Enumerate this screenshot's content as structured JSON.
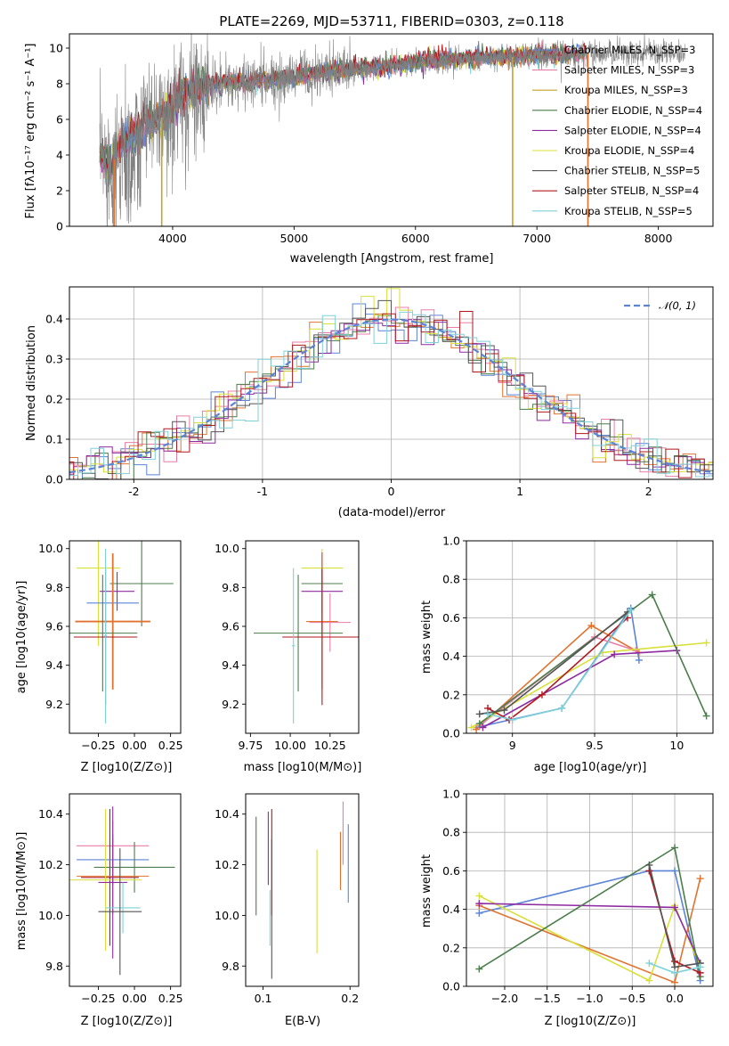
{
  "colors": {
    "chabrier_miles": "#5b84d8",
    "salpeter_miles": "#e87ea8",
    "kroupa_miles": "#c9a227",
    "chabrier_elodie": "#4c7d4c",
    "salpeter_elodie": "#8e2ba1",
    "kroupa_elodie": "#d8e03a",
    "chabrier_stelib": "#555555",
    "salpeter_stelib": "#b0191e",
    "kroupa_stelib": "#7fd1d8",
    "orange": "#e0732f",
    "gaussian": "#5b84d8",
    "spectrum": "#808080",
    "grid": "#b0b0b0"
  },
  "chart_data": [
    {
      "id": "spectrum",
      "type": "line",
      "title": "PLATE=2269, MJD=53711, FIBERID=0303, z=0.118",
      "xlabel": "wavelength [Angstrom, rest frame]",
      "ylabel": "Flux [fλ10⁻¹⁷ erg cm⁻² s⁻¹ A⁻¹]",
      "xlim": [
        3150,
        8450
      ],
      "ylim": [
        0,
        10.8
      ],
      "xticks": [
        4000,
        5000,
        6000,
        7000,
        8000
      ],
      "yticks": [
        0,
        2,
        4,
        6,
        8,
        10
      ],
      "legend_position": "top-right",
      "legend": [
        {
          "label": "Chabrier MILES, N_SSP=3",
          "color": "chabrier_miles"
        },
        {
          "label": "Salpeter MILES, N_SSP=3",
          "color": "salpeter_miles"
        },
        {
          "label": "Kroupa MILES, N_SSP=3",
          "color": "kroupa_miles"
        },
        {
          "label": "Chabrier ELODIE, N_SSP=4",
          "color": "chabrier_elodie"
        },
        {
          "label": "Salpeter ELODIE, N_SSP=4",
          "color": "salpeter_elodie"
        },
        {
          "label": "Kroupa ELODIE, N_SSP=4",
          "color": "kroupa_elodie"
        },
        {
          "label": "Chabrier STELIB, N_SSP=5",
          "color": "chabrier_stelib"
        },
        {
          "label": "Salpeter STELIB, N_SSP=4",
          "color": "salpeter_stelib"
        },
        {
          "label": "Kroupa STELIB, N_SSP=5",
          "color": "kroupa_stelib"
        }
      ],
      "continuum": {
        "x": [
          3400,
          3500,
          3600,
          3700,
          3800,
          3900,
          4000,
          4100,
          4200,
          4400,
          4600,
          4800,
          5000,
          5200,
          5500,
          5800,
          6000,
          6200,
          6500,
          6800,
          7000,
          7200,
          7400
        ],
        "y": [
          3.8,
          3.5,
          4.8,
          5.2,
          5.8,
          6.0,
          6.8,
          7.5,
          7.8,
          8.0,
          8.1,
          8.2,
          8.3,
          8.6,
          8.8,
          9.0,
          9.2,
          9.3,
          9.4,
          9.5,
          9.6,
          9.6,
          9.7
        ]
      }
    },
    {
      "id": "residuals",
      "type": "histogram",
      "xlabel": "(data-model)/error",
      "ylabel": "Normed distribution",
      "xlim": [
        -2.5,
        2.5
      ],
      "ylim": [
        0,
        0.48
      ],
      "xticks": [
        -2,
        -1,
        0,
        1,
        2
      ],
      "yticks": [
        0.0,
        0.1,
        0.2,
        0.3,
        0.4
      ],
      "legend": [
        {
          "label": "𝒩(0, 1)",
          "color": "gaussian",
          "style": "dashed"
        }
      ],
      "legend_position": "top-right"
    },
    {
      "id": "age_vs_Z",
      "type": "errorbar",
      "xlabel": "Z [log10(Z/Z⊙)]",
      "ylabel": "age  [log10(age/yr)]",
      "xlim": [
        -0.45,
        0.32
      ],
      "ylim": [
        9.05,
        10.04
      ],
      "xticks": [
        -0.25,
        0.0,
        0.25
      ],
      "xticklabels": [
        "−0.25",
        "0.00",
        "0.25"
      ],
      "yticks": [
        9.2,
        9.4,
        9.6,
        9.8,
        10.0
      ]
    },
    {
      "id": "age_vs_mass",
      "type": "errorbar",
      "xlabel": "mass [log10(M/M⊙)]",
      "ylabel": "",
      "xlim": [
        9.72,
        10.43
      ],
      "ylim": [
        9.05,
        10.04
      ],
      "xticks": [
        9.75,
        10.0,
        10.25
      ],
      "xticklabels": [
        "9.75",
        "10.00",
        "10.25"
      ],
      "yticks": [
        9.2,
        9.4,
        9.6,
        9.8,
        10.0
      ]
    },
    {
      "id": "weight_vs_age",
      "type": "line",
      "xlabel": "age  [log10(age/yr)]",
      "ylabel": "mass weight",
      "xlim": [
        8.72,
        10.22
      ],
      "ylim": [
        0,
        1.0
      ],
      "xticks": [
        9.0,
        9.5,
        10.0
      ],
      "yticks": [
        0.0,
        0.2,
        0.4,
        0.6,
        0.8,
        1.0
      ],
      "series": [
        {
          "color": "chabrier_miles",
          "x": [
            8.78,
            9.3,
            9.72,
            9.77
          ],
          "y": [
            0.03,
            0.13,
            0.65,
            0.38
          ]
        },
        {
          "color": "orange",
          "x": [
            8.78,
            9.48,
            9.77
          ],
          "y": [
            0.02,
            0.56,
            0.42
          ]
        },
        {
          "color": "salpeter_miles",
          "x": [
            8.8,
            9.5,
            9.75
          ],
          "y": [
            0.04,
            0.5,
            0.43
          ]
        },
        {
          "color": "kroupa_elodie",
          "x": [
            8.75,
            9.55,
            10.18
          ],
          "y": [
            0.03,
            0.42,
            0.47
          ]
        },
        {
          "color": "salpeter_elodie",
          "x": [
            8.82,
            9.62,
            10.0
          ],
          "y": [
            0.03,
            0.41,
            0.43
          ]
        },
        {
          "color": "chabrier_elodie",
          "x": [
            8.8,
            9.85,
            10.18
          ],
          "y": [
            0.05,
            0.72,
            0.09
          ]
        },
        {
          "color": "salpeter_stelib",
          "x": [
            8.85,
            8.98,
            9.18,
            9.7
          ],
          "y": [
            0.13,
            0.07,
            0.2,
            0.6
          ]
        },
        {
          "color": "chabrier_stelib",
          "x": [
            8.8,
            8.95,
            9.7
          ],
          "y": [
            0.1,
            0.12,
            0.63
          ]
        },
        {
          "color": "kroupa_stelib",
          "x": [
            8.85,
            9.0,
            9.3,
            9.72
          ],
          "y": [
            0.1,
            0.07,
            0.13,
            0.64
          ]
        }
      ]
    },
    {
      "id": "mass_vs_Z",
      "type": "errorbar",
      "xlabel": "Z [log10(Z/Z⊙)]",
      "ylabel": "mass [log10(M/M⊙)]",
      "xlim": [
        -0.45,
        0.32
      ],
      "ylim": [
        9.72,
        10.48
      ],
      "xticks": [
        -0.25,
        0.0,
        0.25
      ],
      "xticklabels": [
        "−0.25",
        "0.00",
        "0.25"
      ],
      "yticks": [
        9.8,
        10.0,
        10.2,
        10.4
      ]
    },
    {
      "id": "mass_vs_ebv",
      "type": "errorbar",
      "xlabel": "E(B-V)",
      "ylabel": "",
      "xlim": [
        0.08,
        0.21
      ],
      "ylim": [
        9.72,
        10.48
      ],
      "xticks": [
        0.1,
        0.2
      ],
      "xticklabels": [
        "0.1",
        "0.2"
      ],
      "yticks": [
        9.8,
        10.0,
        10.2,
        10.4
      ]
    },
    {
      "id": "weight_vs_Z",
      "type": "line",
      "xlabel": "Z [log10(Z/Z⊙)]",
      "ylabel": "mass weight",
      "xlim": [
        -2.45,
        0.45
      ],
      "ylim": [
        0,
        1.0
      ],
      "xticks": [
        -2.0,
        -1.5,
        -1.0,
        -0.5,
        0.0
      ],
      "xticklabels": [
        "−2.0",
        "−1.5",
        "−1.0",
        "−0.5",
        "0.0"
      ],
      "yticks": [
        0.0,
        0.2,
        0.4,
        0.6,
        0.8,
        1.0
      ],
      "series": [
        {
          "color": "chabrier_miles",
          "x": [
            -2.3,
            -0.3,
            0.0,
            0.3
          ],
          "y": [
            0.38,
            0.6,
            0.6,
            0.03
          ]
        },
        {
          "color": "orange",
          "x": [
            -2.3,
            0.0,
            0.3
          ],
          "y": [
            0.42,
            0.02,
            0.56
          ]
        },
        {
          "color": "kroupa_elodie",
          "x": [
            -2.3,
            -0.3,
            0.0,
            0.3
          ],
          "y": [
            0.47,
            0.03,
            0.42,
            0.1
          ]
        },
        {
          "color": "salpeter_elodie",
          "x": [
            -2.3,
            0.0,
            0.3
          ],
          "y": [
            0.43,
            0.41,
            0.12
          ]
        },
        {
          "color": "chabrier_elodie",
          "x": [
            -2.3,
            0.0,
            0.3
          ],
          "y": [
            0.09,
            0.72,
            0.05
          ]
        },
        {
          "color": "salpeter_stelib",
          "x": [
            -0.3,
            0.0,
            0.3
          ],
          "y": [
            0.6,
            0.13,
            0.07
          ]
        },
        {
          "color": "chabrier_stelib",
          "x": [
            -0.3,
            0.0,
            0.3
          ],
          "y": [
            0.63,
            0.1,
            0.12
          ]
        },
        {
          "color": "kroupa_stelib",
          "x": [
            -0.3,
            0.0,
            0.3
          ],
          "y": [
            0.12,
            0.07,
            0.1
          ]
        }
      ]
    }
  ]
}
